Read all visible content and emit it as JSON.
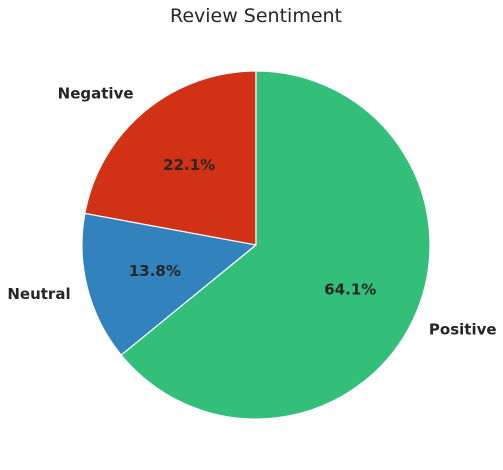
{
  "chart_data": {
    "type": "pie",
    "title": "Review Sentiment",
    "start_angle_deg": 90,
    "direction": "counterclockwise",
    "slices": [
      {
        "label": "Negative",
        "value": 22.1,
        "pct_label": "22.1%",
        "color": "#d13215"
      },
      {
        "label": "Neutral",
        "value": 13.8,
        "pct_label": "13.8%",
        "color": "#3182bd"
      },
      {
        "label": "Positive",
        "value": 64.1,
        "pct_label": "64.1%",
        "color": "#33be79"
      }
    ],
    "edge_color": "#ffffff",
    "legend": "none"
  }
}
